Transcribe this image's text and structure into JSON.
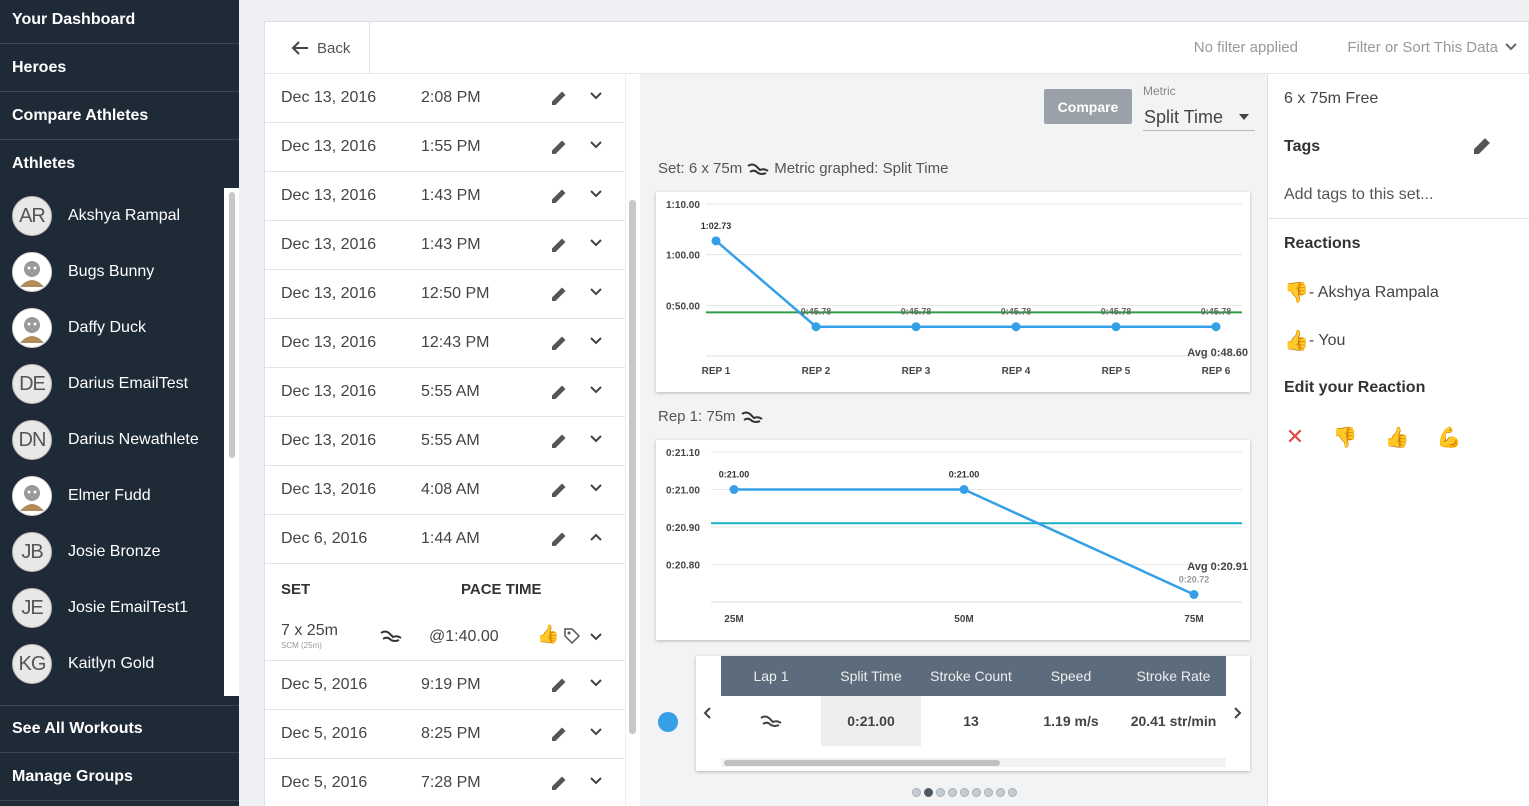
{
  "sidebar": {
    "nav": [
      "Your Dashboard",
      "Heroes",
      "Compare Athletes",
      "Athletes"
    ],
    "athletes": [
      {
        "initials": "AR",
        "name": "Akshya Rampal",
        "has_photo": false
      },
      {
        "initials": "",
        "name": "Bugs Bunny",
        "has_photo": true
      },
      {
        "initials": "",
        "name": "Daffy Duck",
        "has_photo": true
      },
      {
        "initials": "DE",
        "name": "Darius EmailTest",
        "has_photo": false
      },
      {
        "initials": "DN",
        "name": "Darius Newathlete",
        "has_photo": false
      },
      {
        "initials": "",
        "name": "Elmer Fudd",
        "has_photo": true
      },
      {
        "initials": "JB",
        "name": "Josie Bronze",
        "has_photo": false
      },
      {
        "initials": "JE",
        "name": "Josie EmailTest1",
        "has_photo": false
      },
      {
        "initials": "KG",
        "name": "Kaitlyn Gold",
        "has_photo": false
      }
    ],
    "bottom_nav": [
      "See All Workouts",
      "Manage Groups"
    ]
  },
  "topbar": {
    "back_label": "Back",
    "filter_status": "No filter applied",
    "filter_dropdown": "Filter or Sort This Data"
  },
  "workouts": [
    {
      "date": "Dec 13, 2016",
      "time": "2:08 PM",
      "expanded": false
    },
    {
      "date": "Dec 13, 2016",
      "time": "1:55 PM",
      "expanded": false
    },
    {
      "date": "Dec 13, 2016",
      "time": "1:43 PM",
      "expanded": false
    },
    {
      "date": "Dec 13, 2016",
      "time": "1:43 PM",
      "expanded": false
    },
    {
      "date": "Dec 13, 2016",
      "time": "12:50 PM",
      "expanded": false
    },
    {
      "date": "Dec 13, 2016",
      "time": "12:43 PM",
      "expanded": false
    },
    {
      "date": "Dec 13, 2016",
      "time": "5:55 AM",
      "expanded": false
    },
    {
      "date": "Dec 13, 2016",
      "time": "5:55 AM",
      "expanded": false
    },
    {
      "date": "Dec 13, 2016",
      "time": "4:08 AM",
      "expanded": false
    },
    {
      "date": "Dec 6, 2016",
      "time": "1:44 AM",
      "expanded": true
    },
    {
      "date": "Dec 5, 2016",
      "time": "9:19 PM",
      "expanded": false
    },
    {
      "date": "Dec 5, 2016",
      "time": "8:25 PM",
      "expanded": false
    },
    {
      "date": "Dec 5, 2016",
      "time": "7:28 PM",
      "expanded": false
    }
  ],
  "set_table": {
    "col_set": "SET",
    "col_pace": "PACE TIME",
    "row": {
      "set": "7 x 25m",
      "sub": "SCM (25m)",
      "pace": "@1:40.00"
    }
  },
  "controls": {
    "compare_label": "Compare",
    "metric_label": "Metric",
    "metric_value": "Split Time"
  },
  "chart1_title": "Set: 6 x 75m",
  "chart1_title_suffix": "Metric graphed: Split Time",
  "chart2_title": "Rep 1: 75m",
  "lap_table": {
    "headers": [
      "Lap 1",
      "Split Time",
      "Stroke Count",
      "Speed",
      "Stroke Rate"
    ],
    "values": [
      "",
      "0:21.00",
      "13",
      "1.19 m/s",
      "20.41 str/min"
    ]
  },
  "pager": {
    "count": 9,
    "active": 1
  },
  "right_panel": {
    "set_name": "6 x 75m Free",
    "tags_heading": "Tags",
    "tags_placeholder": "Add tags to this set...",
    "reactions_heading": "Reactions",
    "reactions": [
      {
        "emoji": "👎",
        "text": "- Akshya Rampala"
      },
      {
        "emoji": "👍",
        "text": "- You"
      }
    ],
    "edit_heading": "Edit your Reaction"
  },
  "colors": {
    "series": "#36a0e6",
    "avg1": "#2f9e46",
    "avg2": "#1ab0c4",
    "sidebar": "#1f2a37"
  },
  "chart_data": [
    {
      "type": "line",
      "title": "Set: 6 x 75m Metric graphed: Split Time",
      "categories": [
        "REP 1",
        "REP 2",
        "REP 3",
        "REP 4",
        "REP 5",
        "REP 6"
      ],
      "values": [
        62.73,
        45.78,
        45.78,
        45.78,
        45.78,
        45.78
      ],
      "point_labels": [
        "1:02.73",
        "0:45.78",
        "0:45.78",
        "0:45.78",
        "0:45.78",
        "0:45.78"
      ],
      "y_ticks": [
        {
          "v": 70,
          "label": "1:10.00"
        },
        {
          "v": 60,
          "label": "1:00.00"
        },
        {
          "v": 50,
          "label": "0:50.00"
        }
      ],
      "average": 48.6,
      "average_label": "Avg 0:48.60",
      "ylim": [
        40,
        70
      ],
      "grid": true
    },
    {
      "type": "line",
      "title": "Rep 1: 75m",
      "categories": [
        "25M",
        "50M",
        "75M"
      ],
      "values": [
        21.0,
        21.0,
        20.72
      ],
      "point_labels": [
        "0:21.00",
        "0:21.00",
        "0:20.72"
      ],
      "y_ticks": [
        {
          "v": 21.1,
          "label": "0:21.10"
        },
        {
          "v": 21.0,
          "label": "0:21.00"
        },
        {
          "v": 20.9,
          "label": "0:20.90"
        },
        {
          "v": 20.8,
          "label": "0:20.80"
        }
      ],
      "average": 20.91,
      "average_label": "Avg 0:20.91",
      "ylim": [
        20.7,
        21.1
      ],
      "grid": true
    }
  ]
}
